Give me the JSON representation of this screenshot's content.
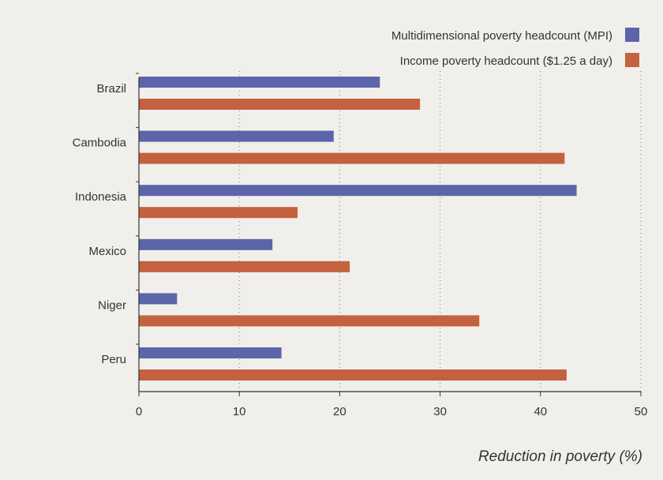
{
  "chart_data": {
    "type": "bar",
    "orientation": "horizontal",
    "categories": [
      "Brazil",
      "Cambodia",
      "Indonesia",
      "Mexico",
      "Niger",
      "Peru"
    ],
    "series": [
      {
        "name": "Multidimensional poverty headcount (MPI)",
        "color": "#5c65aa",
        "values": [
          24.0,
          19.4,
          43.6,
          13.3,
          3.8,
          14.2
        ]
      },
      {
        "name": "Income poverty headcount ($1.25 a day)",
        "color": "#c4613f",
        "values": [
          28.0,
          42.4,
          15.8,
          21.0,
          33.9,
          42.6
        ]
      }
    ],
    "title": "",
    "xlabel": "Reduction in poverty (%)",
    "ylabel": "",
    "xlim": [
      0,
      50
    ],
    "xticks": [
      0,
      10,
      20,
      30,
      40,
      50
    ],
    "xtick_labels": [
      "0",
      "10",
      "20",
      "30",
      "40",
      "50"
    ],
    "grid": "vertical-dotted",
    "legend_position": "top-right"
  }
}
